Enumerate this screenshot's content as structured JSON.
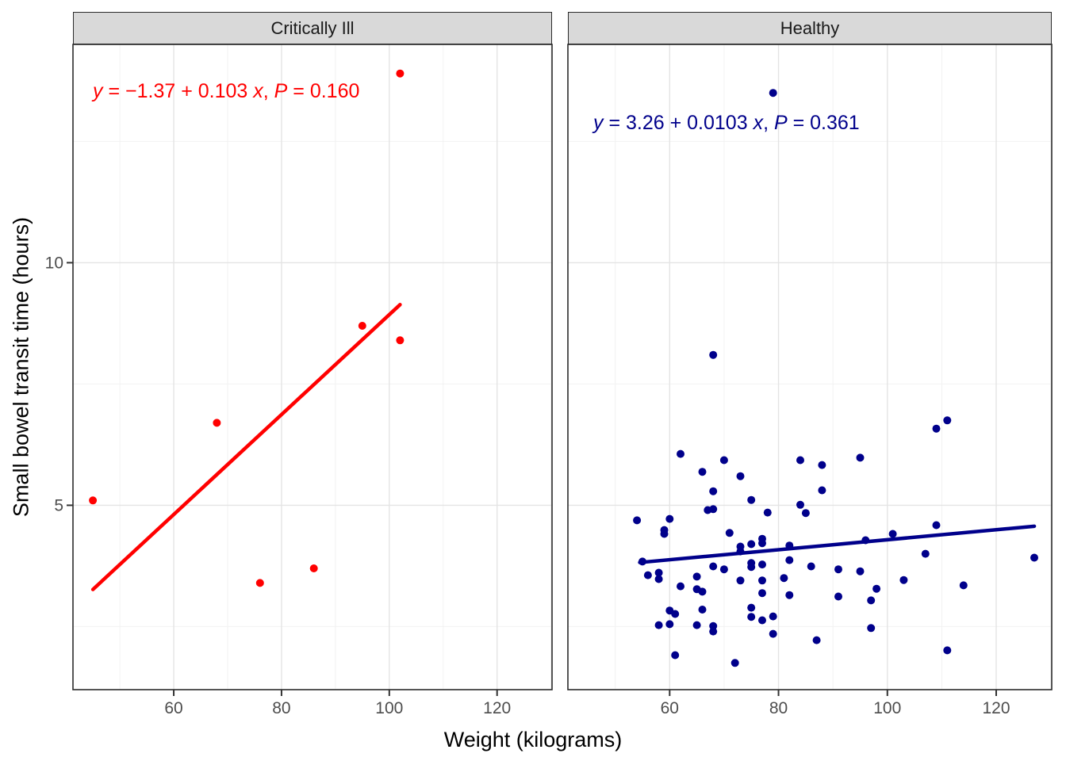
{
  "chart_data": {
    "type": "scatter",
    "title": "",
    "xlabel": "Weight (kilograms)",
    "ylabel": "Small bowel transit time (hours)",
    "xlim": [
      41.3,
      130.2
    ],
    "ylim": [
      1.2,
      14.5
    ],
    "x_major_ticks": [
      60,
      80,
      100,
      120
    ],
    "x_minor_gridlines": [
      50,
      70,
      90,
      110,
      130
    ],
    "y_major_ticks": [
      5,
      10
    ],
    "y_minor_gridlines": [
      2.5,
      7.5,
      12.5
    ],
    "grid": true,
    "legend": "none",
    "facets": [
      {
        "label": "Critically Ill",
        "color": "#FF0000",
        "equation": "y = −1.37 + 0.103 x, P = 0.160",
        "regression": {
          "intercept": -1.37,
          "slope": 0.103,
          "p_value": 0.16,
          "x_start": 45,
          "x_end": 102
        },
        "points": [
          [
            45,
            5.1
          ],
          [
            68,
            6.7
          ],
          [
            76,
            3.4
          ],
          [
            86,
            3.7
          ],
          [
            95,
            8.7
          ],
          [
            102,
            8.4
          ],
          [
            102,
            13.9
          ]
        ]
      },
      {
        "label": "Healthy",
        "color": "#00008B",
        "equation": "y = 3.26 + 0.0103 x, P = 0.361",
        "regression": {
          "intercept": 3.26,
          "slope": 0.0103,
          "p_value": 0.361,
          "x_start": 54.5,
          "x_end": 127
        },
        "points": [
          [
            79,
            13.5
          ],
          [
            68,
            8.1
          ],
          [
            111,
            6.75
          ],
          [
            109,
            6.58
          ],
          [
            62,
            6.06
          ],
          [
            95,
            5.98
          ],
          [
            70,
            5.93
          ],
          [
            84,
            5.93
          ],
          [
            88,
            5.83
          ],
          [
            66,
            5.69
          ],
          [
            73,
            5.6
          ],
          [
            88,
            5.31
          ],
          [
            68,
            5.29
          ],
          [
            75,
            5.11
          ],
          [
            84,
            5.01
          ],
          [
            68,
            4.92
          ],
          [
            67,
            4.9
          ],
          [
            85,
            4.84
          ],
          [
            78,
            4.85
          ],
          [
            60,
            4.72
          ],
          [
            54,
            4.69
          ],
          [
            109,
            4.59
          ],
          [
            59,
            4.49
          ],
          [
            71,
            4.43
          ],
          [
            59,
            4.41
          ],
          [
            101,
            4.41
          ],
          [
            77,
            4.31
          ],
          [
            96,
            4.28
          ],
          [
            77,
            4.22
          ],
          [
            75,
            4.2
          ],
          [
            82,
            4.17
          ],
          [
            73,
            4.15
          ],
          [
            73,
            4.05
          ],
          [
            107,
            4.0
          ],
          [
            127,
            3.92
          ],
          [
            82,
            3.87
          ],
          [
            55,
            3.84
          ],
          [
            75,
            3.81
          ],
          [
            77,
            3.78
          ],
          [
            68,
            3.74
          ],
          [
            86,
            3.74
          ],
          [
            75,
            3.73
          ],
          [
            70,
            3.68
          ],
          [
            91,
            3.68
          ],
          [
            95,
            3.64
          ],
          [
            58,
            3.61
          ],
          [
            56,
            3.56
          ],
          [
            65,
            3.53
          ],
          [
            81,
            3.5
          ],
          [
            58,
            3.48
          ],
          [
            103,
            3.46
          ],
          [
            73,
            3.45
          ],
          [
            77,
            3.45
          ],
          [
            114,
            3.35
          ],
          [
            62,
            3.33
          ],
          [
            98,
            3.28
          ],
          [
            65,
            3.27
          ],
          [
            66,
            3.22
          ],
          [
            77,
            3.19
          ],
          [
            82,
            3.15
          ],
          [
            91,
            3.12
          ],
          [
            97,
            3.04
          ],
          [
            75,
            2.89
          ],
          [
            66,
            2.85
          ],
          [
            60,
            2.83
          ],
          [
            61,
            2.76
          ],
          [
            79,
            2.71
          ],
          [
            75,
            2.7
          ],
          [
            77,
            2.63
          ],
          [
            60,
            2.55
          ],
          [
            58,
            2.53
          ],
          [
            65,
            2.53
          ],
          [
            68,
            2.51
          ],
          [
            97,
            2.47
          ],
          [
            68,
            2.4
          ],
          [
            79,
            2.35
          ],
          [
            87,
            2.22
          ],
          [
            111,
            2.01
          ],
          [
            61,
            1.91
          ],
          [
            72,
            1.75
          ]
        ]
      }
    ]
  },
  "style": {
    "strip_background": "#D9D9D9",
    "panel_border": "#2b2b2b",
    "grid_major": "#E4E4E4",
    "grid_minor": "#F2F2F2",
    "tick_label_color": "#4D4D4D",
    "axis_title_color": "#000000",
    "point_color_critically_ill": "#FF0000",
    "point_color_healthy": "#00008B"
  }
}
